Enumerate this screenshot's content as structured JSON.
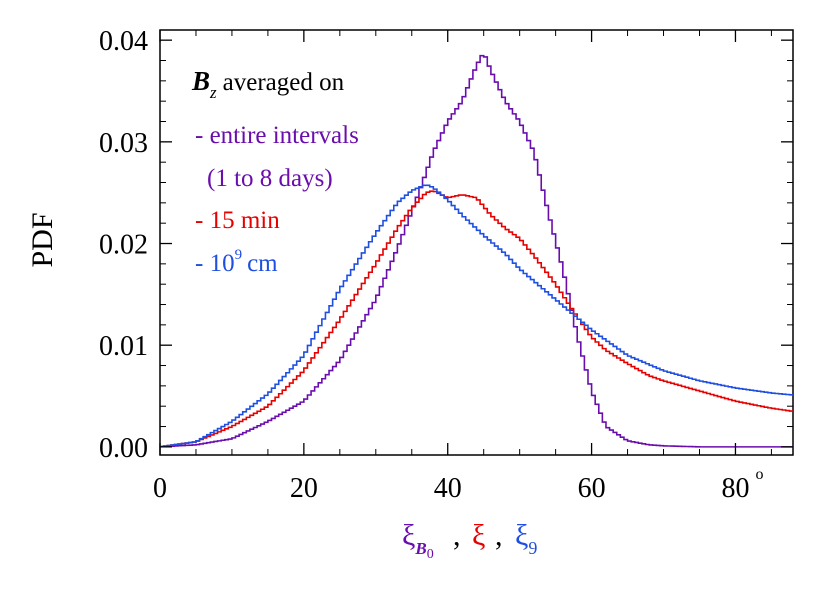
{
  "chart_data": {
    "type": "line",
    "style": "step",
    "title": "",
    "ylabel": "PDF",
    "xlim": [
      0,
      88
    ],
    "ylim": [
      -0.0008,
      0.041
    ],
    "xticks": [
      0,
      20,
      40,
      60,
      80
    ],
    "xtick_labels": [
      "0",
      "20",
      "40",
      "60",
      "80"
    ],
    "xtick_last_superscript": "o",
    "yticks": [
      0.0,
      0.01,
      0.02,
      0.03,
      0.04
    ],
    "ytick_labels": [
      "0.00",
      "0.01",
      "0.02",
      "0.03",
      "0.04"
    ],
    "xlabel_parts": [
      {
        "text": "ξ",
        "sub": "B",
        "sub2": "0",
        "color": "#6a0dad"
      },
      {
        "text": ",",
        "color": "#000000"
      },
      {
        "text": "ξ",
        "color": "#e60000"
      },
      {
        "text": ",",
        "color": "#000000"
      },
      {
        "text": "ξ",
        "sub": "9",
        "color": "#1f4fe0"
      }
    ],
    "legend": {
      "title_symbol": "B",
      "title_sub": "z",
      "title_text": "averaged on",
      "placement": "top-left",
      "entries": [
        {
          "line1": "- entire intervals",
          "line2": "(1 to 8 days)",
          "color": "#6a0dad"
        },
        {
          "line1": "- 15 min",
          "color": "#e60000"
        },
        {
          "line1": "- 10",
          "sup": "9",
          "line1_tail": "cm",
          "color": "#1f4fe0"
        }
      ]
    },
    "series": [
      {
        "name": "entire intervals",
        "color": "#6a0dad",
        "x": [
          0,
          5,
          10,
          15,
          20,
          25,
          30,
          33,
          36,
          38,
          40,
          42,
          44,
          45,
          46,
          48,
          50,
          52,
          54,
          56,
          58,
          60,
          62,
          65,
          68,
          70,
          75,
          80,
          85,
          88
        ],
        "y": [
          0,
          0.0002,
          0.0008,
          0.0025,
          0.0045,
          0.0085,
          0.0145,
          0.0195,
          0.025,
          0.029,
          0.032,
          0.034,
          0.0375,
          0.0388,
          0.037,
          0.034,
          0.032,
          0.029,
          0.023,
          0.0175,
          0.011,
          0.0055,
          0.002,
          0.0006,
          0.0002,
          0.0001,
          0,
          0,
          0,
          0
        ]
      },
      {
        "name": "15 min",
        "color": "#e60000",
        "x": [
          0,
          5,
          10,
          15,
          20,
          25,
          30,
          33,
          35,
          37,
          38,
          40,
          42,
          44,
          46,
          48,
          50,
          52,
          55,
          58,
          60,
          62,
          65,
          68,
          70,
          75,
          80,
          85,
          88
        ],
        "y": [
          0,
          0.0005,
          0.002,
          0.004,
          0.0075,
          0.0125,
          0.018,
          0.0215,
          0.0235,
          0.025,
          0.0252,
          0.0245,
          0.0248,
          0.0245,
          0.0228,
          0.0215,
          0.0205,
          0.0188,
          0.016,
          0.0128,
          0.0108,
          0.0095,
          0.0082,
          0.007,
          0.0065,
          0.0055,
          0.0045,
          0.0038,
          0.0035
        ]
      },
      {
        "name": "10^9 cm",
        "color": "#1f4fe0",
        "x": [
          0,
          5,
          10,
          15,
          20,
          25,
          30,
          33,
          35,
          37,
          38,
          40,
          42,
          45,
          48,
          50,
          55,
          60,
          65,
          70,
          75,
          80,
          85,
          88
        ],
        "y": [
          0,
          0.0005,
          0.0025,
          0.0052,
          0.009,
          0.0155,
          0.021,
          0.024,
          0.0252,
          0.0258,
          0.0255,
          0.0243,
          0.0228,
          0.0208,
          0.019,
          0.0175,
          0.0145,
          0.0115,
          0.009,
          0.0075,
          0.0065,
          0.0058,
          0.0053,
          0.0051
        ]
      }
    ]
  }
}
